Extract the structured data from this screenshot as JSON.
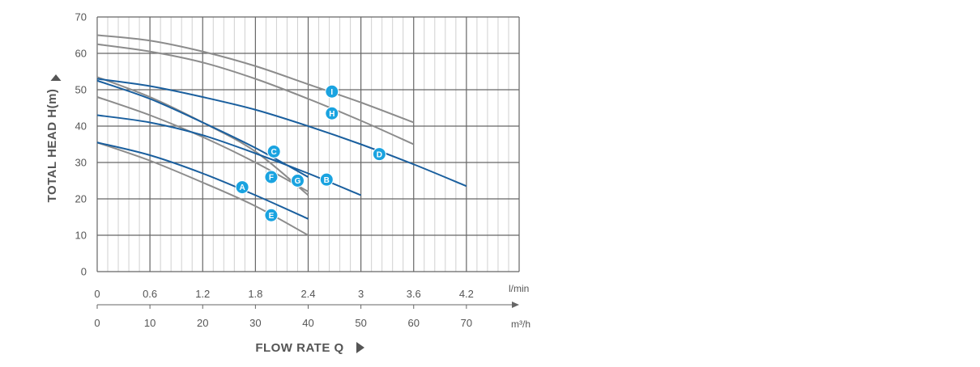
{
  "chart_data": {
    "type": "line",
    "title": "",
    "ylabel": "TOTAL HEAD H(m)",
    "xlabel": "FLOW RATE Q",
    "xlim": [
      0,
      80
    ],
    "ylim": [
      0,
      70
    ],
    "x_ticks": [
      0,
      10,
      20,
      30,
      40,
      50,
      60,
      70
    ],
    "y_ticks": [
      0,
      10,
      20,
      30,
      40,
      50,
      60,
      70
    ],
    "x_tick_labels_lmin": [
      "0",
      "0.6",
      "1.2",
      "1.8",
      "2.4",
      "3",
      "3.6",
      "4.2"
    ],
    "x_tick_labels_m3h": [
      "0",
      "10",
      "20",
      "30",
      "40",
      "50",
      "60",
      "70"
    ],
    "x_unit_top": "l/min",
    "x_unit_bottom": "m³/h",
    "grid": true,
    "series": [
      {
        "name": "A",
        "color": "#1a5f9e",
        "x": [
          0,
          10,
          20,
          30,
          40
        ],
        "y": [
          35.5,
          32,
          27,
          21,
          14.5
        ],
        "label_at": [
          27.5,
          23.2
        ]
      },
      {
        "name": "B",
        "color": "#1a5f9e",
        "x": [
          0,
          10,
          20,
          30,
          40,
          50
        ],
        "y": [
          43,
          41,
          37.5,
          32.5,
          27,
          21
        ],
        "label_at": [
          43.5,
          25.3
        ]
      },
      {
        "name": "C",
        "color": "#1a5f9e",
        "x": [
          0,
          10,
          20,
          30,
          40
        ],
        "y": [
          52.5,
          47.5,
          41,
          34,
          26
        ],
        "label_at": [
          33.5,
          33
        ]
      },
      {
        "name": "D",
        "color": "#1a5f9e",
        "x": [
          0,
          10,
          20,
          30,
          40,
          50,
          60,
          70
        ],
        "y": [
          53,
          51,
          48,
          44.5,
          40,
          35,
          29.5,
          23.5
        ],
        "label_at": [
          53.5,
          32.3
        ]
      },
      {
        "name": "E",
        "color": "#8c8c8c",
        "x": [
          0,
          10,
          20,
          30,
          40
        ],
        "y": [
          35.5,
          30.5,
          24.5,
          18,
          10
        ],
        "label_at": [
          33,
          15.5
        ]
      },
      {
        "name": "F",
        "color": "#8c8c8c",
        "x": [
          0,
          10,
          20,
          30,
          40
        ],
        "y": [
          48,
          43,
          37,
          30,
          22
        ],
        "label_at": [
          33,
          26
        ]
      },
      {
        "name": "G",
        "color": "#8c8c8c",
        "x": [
          0,
          10,
          20,
          30,
          40
        ],
        "y": [
          53.5,
          48,
          41,
          33,
          21
        ],
        "label_at": [
          38,
          25
        ]
      },
      {
        "name": "H",
        "color": "#8c8c8c",
        "x": [
          0,
          10,
          20,
          30,
          40,
          50,
          60
        ],
        "y": [
          62.5,
          60.5,
          57.5,
          53,
          47.5,
          41.5,
          35
        ],
        "label_at": [
          44.5,
          43.5
        ]
      },
      {
        "name": "I",
        "color": "#8c8c8c",
        "x": [
          0,
          10,
          20,
          30,
          40,
          50,
          60
        ],
        "y": [
          65,
          63.5,
          60.5,
          56.5,
          51.5,
          46.5,
          41
        ],
        "label_at": [
          44.5,
          49.5
        ]
      }
    ],
    "badge_color": "#1aa3e0"
  }
}
